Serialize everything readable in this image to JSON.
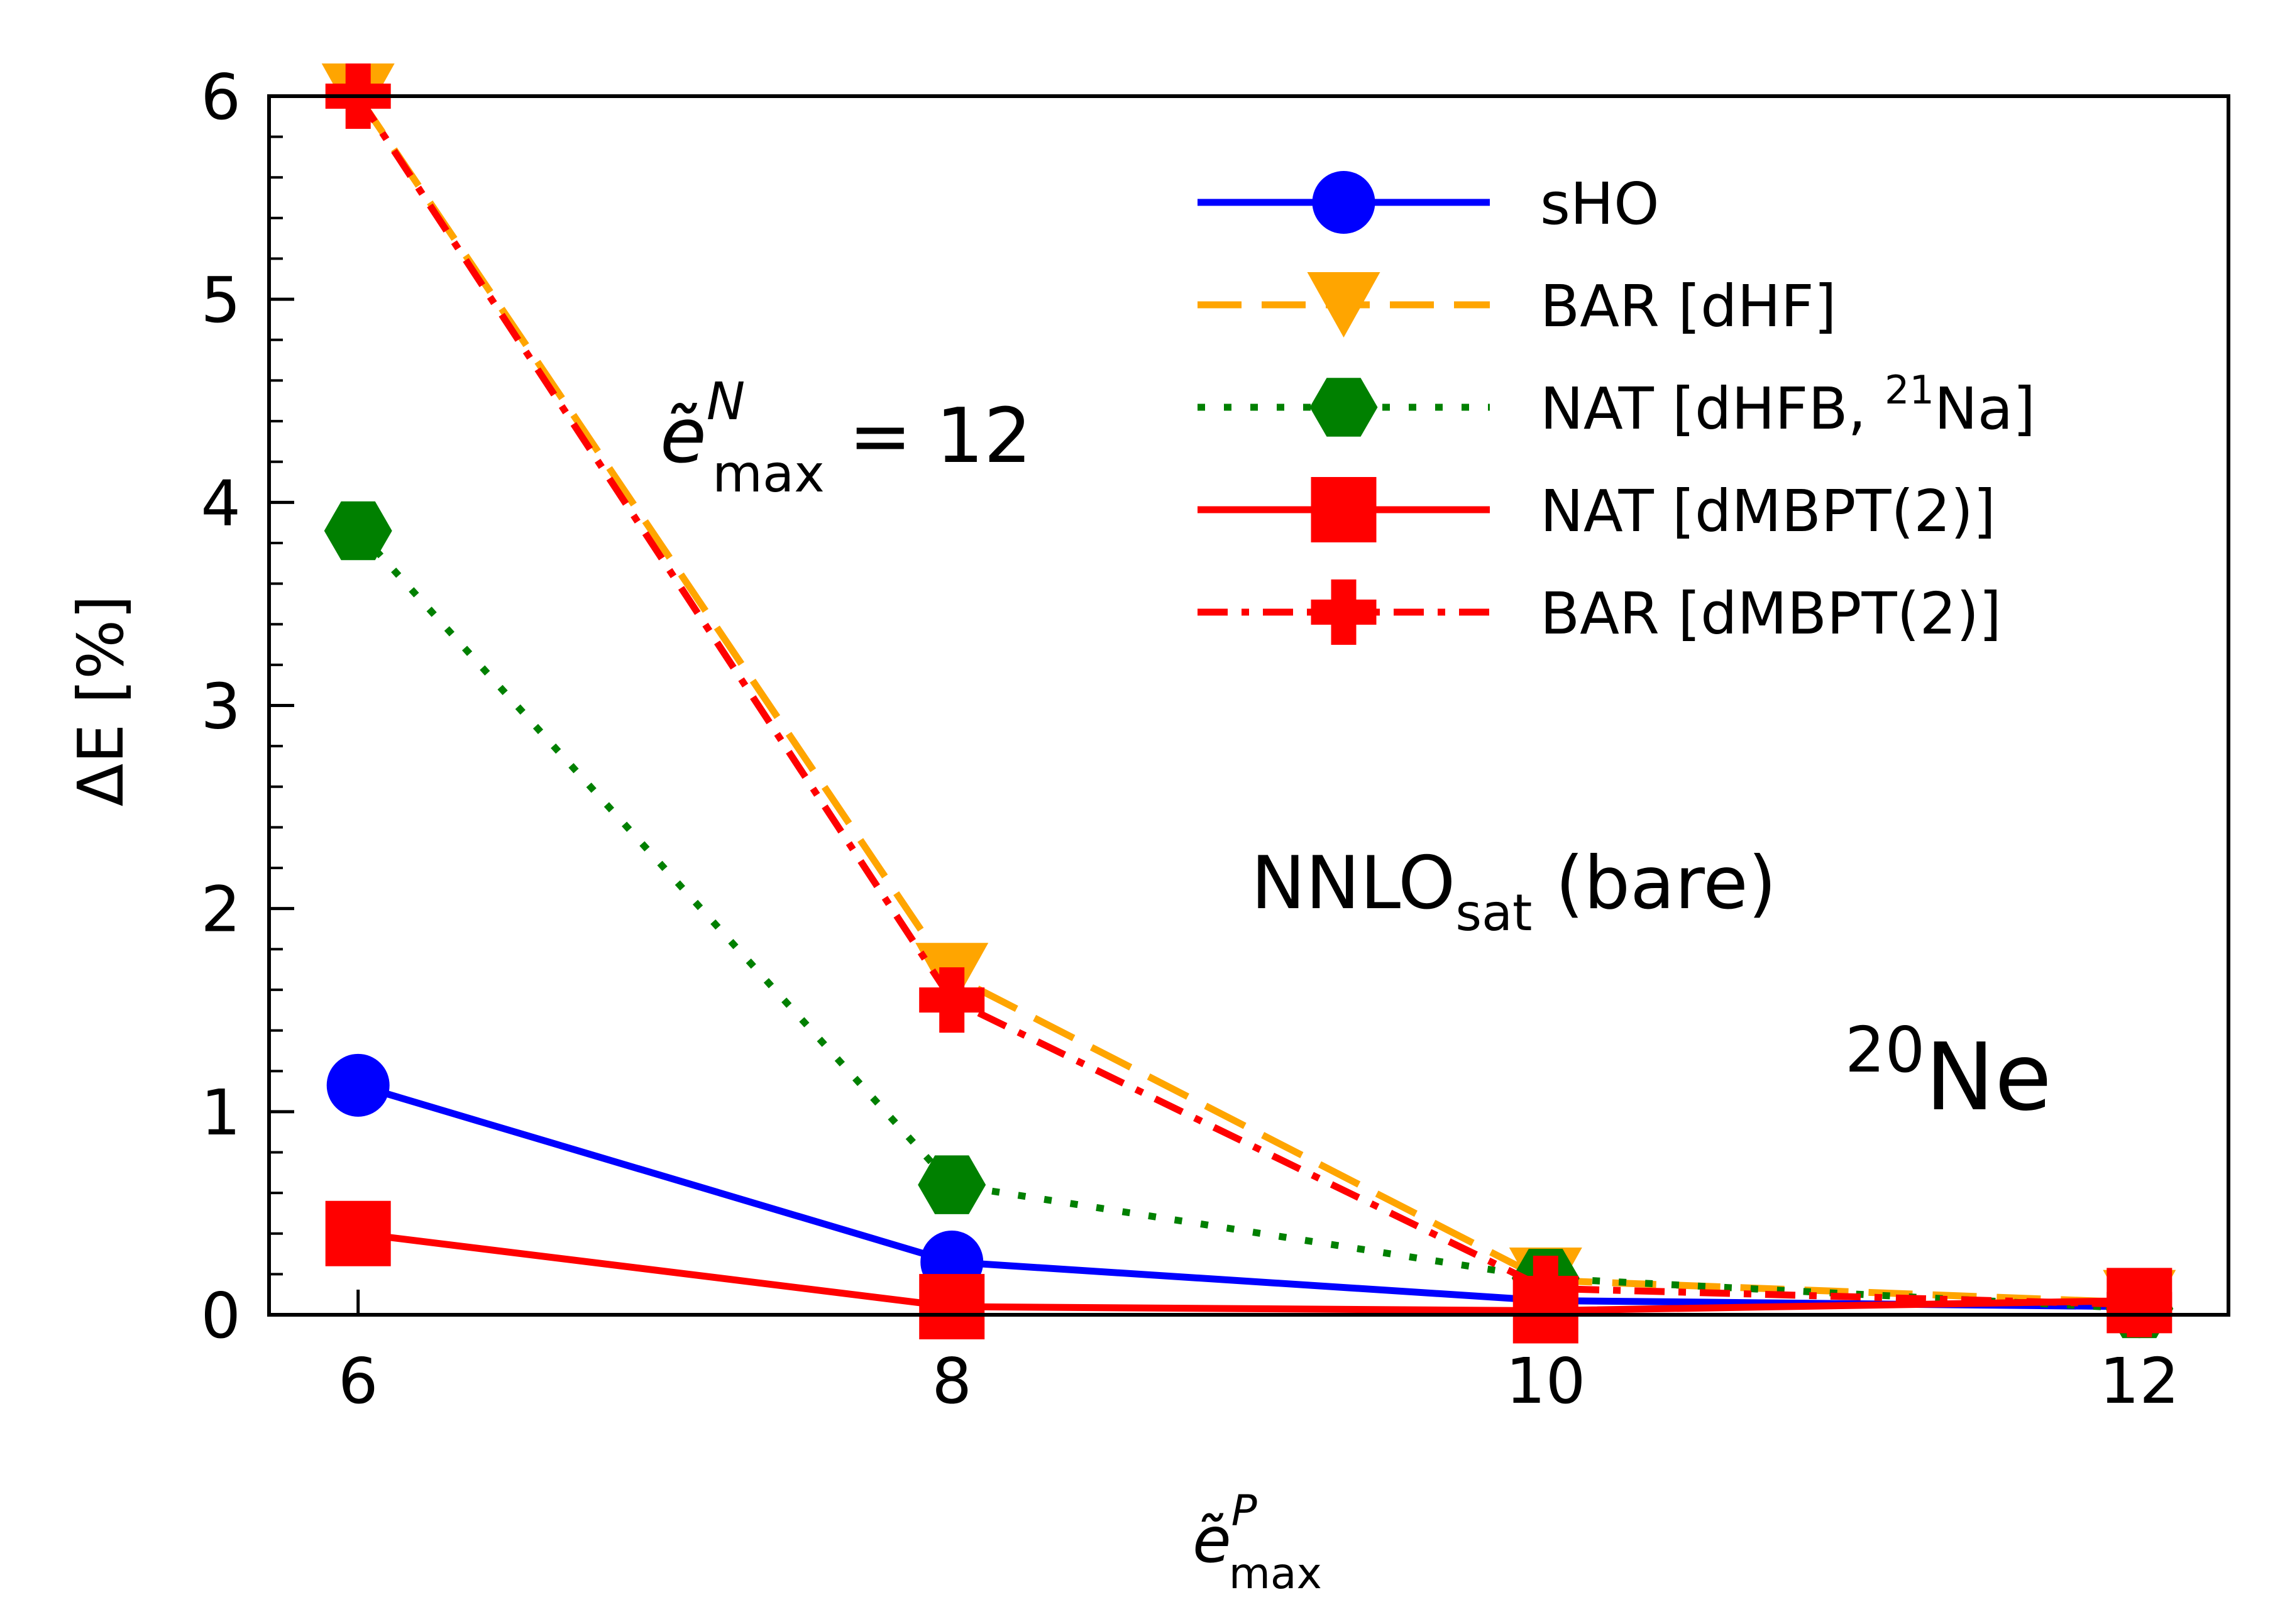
{
  "chart_data": {
    "type": "line",
    "xlabel": {
      "base": "ẽ",
      "sup": "P",
      "sub": "max"
    },
    "ylabel": "ΔE [%]",
    "xlim": [
      5.7,
      12.3
    ],
    "ylim": [
      0,
      6
    ],
    "x_ticks": [
      6,
      8,
      10,
      12
    ],
    "x_tick_labels": [
      "6",
      "8",
      "10",
      "12"
    ],
    "y_ticks": [
      0,
      1,
      2,
      3,
      4,
      5,
      6
    ],
    "y_tick_labels": [
      "0",
      "1",
      "2",
      "3",
      "4",
      "5",
      "6"
    ],
    "y_minor_step": 0.2,
    "legend_position": "top-right",
    "series": [
      {
        "name": "sHO",
        "color": "#0000ff",
        "dash": "solid",
        "marker": "circle",
        "x": [
          6,
          8,
          10,
          12
        ],
        "values": [
          1.13,
          0.26,
          0.07,
          0.04
        ]
      },
      {
        "name": "BAR [dHF]",
        "color": "#ffa500",
        "dash": "dashed",
        "marker": "triangle-down",
        "x": [
          6,
          8,
          10,
          12
        ],
        "values": [
          6.0,
          1.67,
          0.17,
          0.06
        ]
      },
      {
        "name": "NAT [dHFB, ²¹Na]",
        "color": "#008000",
        "dash": "dotted",
        "marker": "hexagon",
        "x": [
          6,
          8,
          10,
          12
        ],
        "values": [
          3.86,
          0.64,
          0.18,
          0.03
        ]
      },
      {
        "name": "NAT [dMBPT(2)]",
        "color": "#ff0000",
        "dash": "solid",
        "marker": "square",
        "x": [
          6,
          8,
          10,
          12
        ],
        "values": [
          0.4,
          0.04,
          0.02,
          0.07
        ]
      },
      {
        "name": "BAR [dMBPT(2)]",
        "color": "#ff0000",
        "dash": "dashdot",
        "marker": "plus",
        "x": [
          6,
          8,
          10,
          12
        ],
        "values": [
          6.0,
          1.55,
          0.13,
          0.05
        ]
      }
    ],
    "legend_labels": {
      "s0": {
        "text": "sHO"
      },
      "s1": {
        "text": "BAR [dHF]"
      },
      "s2": {
        "pre": "NAT [dHFB, ",
        "sup": "21",
        "post": "Na]"
      },
      "s3": {
        "text": "NAT [dMBPT(2)]"
      },
      "s4": {
        "text": "BAR [dMBPT(2)]"
      }
    },
    "annotations": {
      "emax_n": {
        "base": "ẽ",
        "sup": "N",
        "sub": "max",
        "rest": " = 12"
      },
      "interaction": {
        "pre": "NNLO",
        "sub": "sat",
        "post": " (bare)"
      },
      "nucleus": {
        "sup": "20",
        "text": "Ne"
      }
    }
  }
}
